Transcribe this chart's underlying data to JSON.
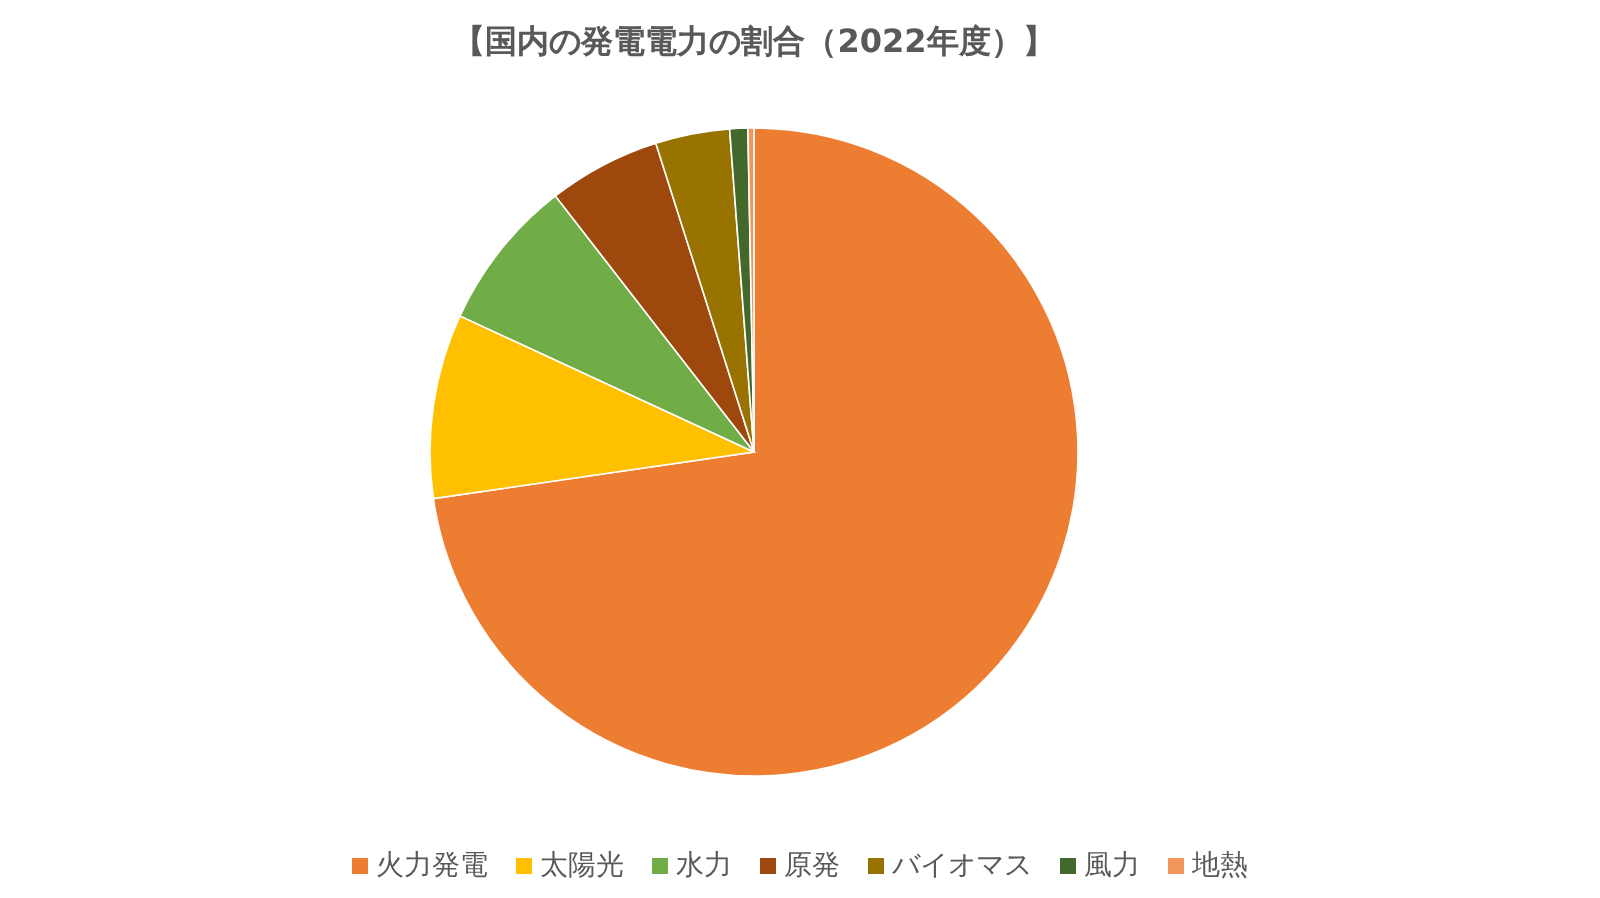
{
  "chart_data": {
    "type": "pie",
    "title": "【国内の発電電力の割合（2022年度）】",
    "categories": [
      "火力発電",
      "太陽光",
      "水力",
      "原発",
      "バイオマス",
      "風力",
      "地熱"
    ],
    "values": [
      72.7,
      9.2,
      7.6,
      5.6,
      3.7,
      0.9,
      0.3
    ],
    "colors": [
      "#ed7d31",
      "#ffc000",
      "#70ad47",
      "#9e480e",
      "#997300",
      "#43682b",
      "#f1975a"
    ],
    "legend": "bottom"
  }
}
